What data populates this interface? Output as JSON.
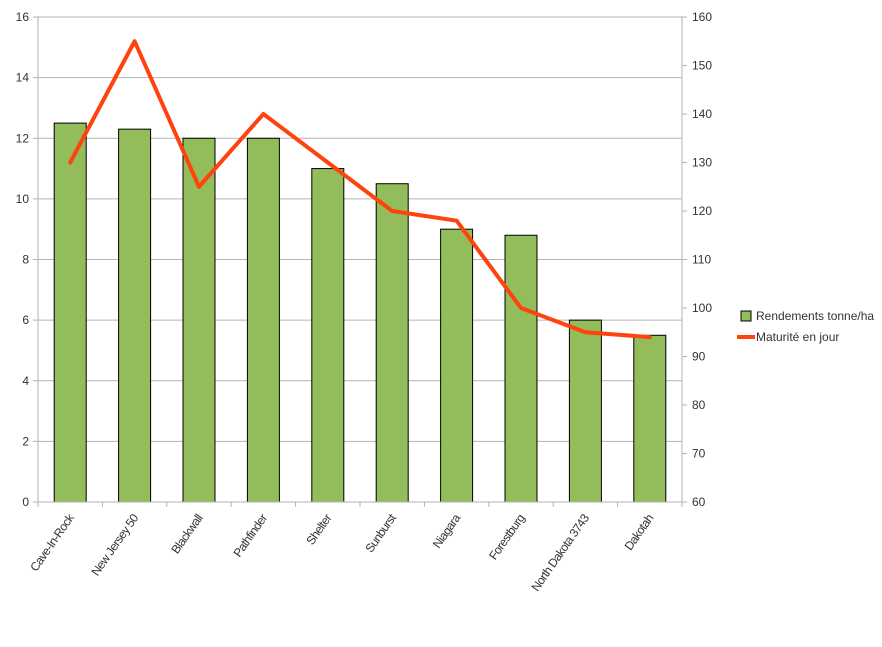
{
  "chart_data": {
    "type": "bar",
    "categories": [
      "Cave-In-Rock",
      "New Jersey 50",
      "Blackwall",
      "Pathfinder",
      "Shelter",
      "Sunburst",
      "Niagara",
      "Forestburg",
      "North Dakota 3743",
      "Dakotah"
    ],
    "series": [
      {
        "name": "Rendements tonne/ha",
        "type": "bar",
        "axis": "left",
        "color": "#92bd5a",
        "values": [
          12.5,
          12.3,
          12.0,
          12.0,
          11.0,
          10.5,
          9.0,
          8.8,
          6.0,
          5.5
        ]
      },
      {
        "name": "Maturité en jour",
        "type": "line",
        "axis": "right",
        "color": "#ff420e",
        "values": [
          130,
          155,
          125,
          140,
          130,
          120,
          118,
          100,
          95,
          94
        ]
      }
    ],
    "y_left": {
      "min": 0,
      "max": 16,
      "ticks": [
        "0",
        "2",
        "4",
        "6",
        "8",
        "10",
        "12",
        "14",
        "16"
      ]
    },
    "y_right": {
      "min": 60,
      "max": 160,
      "ticks": [
        "60",
        "70",
        "80",
        "90",
        "100",
        "110",
        "120",
        "130",
        "140",
        "150",
        "160"
      ]
    },
    "grid": true,
    "legend_position": "right"
  }
}
